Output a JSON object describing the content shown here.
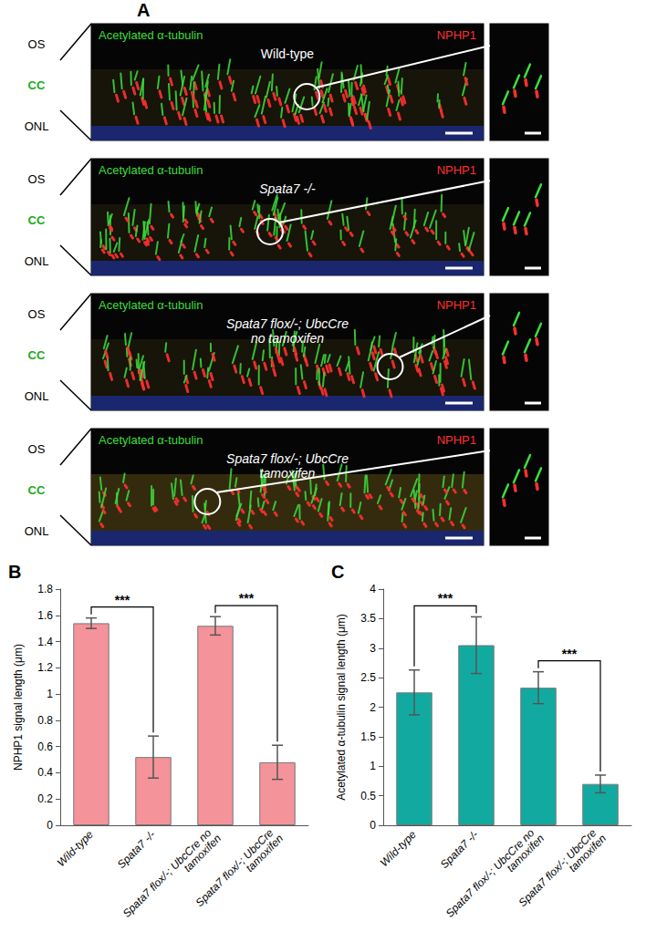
{
  "panel_a": {
    "label": "A",
    "layers": [
      "OS",
      "CC",
      "ONL"
    ],
    "stains": [
      {
        "text": "Acetylated α-tubulin",
        "color": "#3ddc3d"
      },
      {
        "text": "NPHP1",
        "color": "#ff3030"
      }
    ],
    "rows": [
      [
        "Wild-type"
      ],
      [
        "Spata7 -/-"
      ],
      [
        "Spata7 flox/-; UbcCre",
        "no tamoxifen"
      ],
      [
        "Spata7 flox/-; UbcCre",
        "tamoxifen"
      ]
    ]
  },
  "chart_data": [
    {
      "type": "bar",
      "title": "B",
      "y_label": "NPHP1 signal length (μm)",
      "categories": [
        "Wild-type",
        "Spata7 -/-",
        "Spata7 flox/-; UbcCre no tamoxifen",
        "Spata7 flox/-; UbcCre tamoxifen"
      ],
      "values": [
        1.54,
        0.52,
        1.52,
        0.48
      ],
      "errors": [
        0.04,
        0.16,
        0.07,
        0.13
      ],
      "color": "#f4939a",
      "ylim": [
        0,
        1.8
      ],
      "yticks": [
        0,
        0.2,
        0.4,
        0.6,
        0.8,
        1,
        1.2,
        1.4,
        1.6,
        1.8
      ],
      "grid": false,
      "annotations": [
        {
          "text": "***",
          "from": "Wild-type",
          "to": "Spata7 -/-"
        },
        {
          "text": "***",
          "from": "Spata7 flox/-; UbcCre no tamoxifen",
          "to": "Spata7 flox/-; UbcCre tamoxifen"
        }
      ]
    },
    {
      "type": "bar",
      "title": "C",
      "y_label": "Acetylated α-tubulin signal length (μm)",
      "categories": [
        "Wild-type",
        "Spata7 -/-",
        "Spata7 flox/-; UbcCre no tamoxifen",
        "Spata7 flox/-; UbcCre tamoxifen"
      ],
      "values": [
        2.25,
        3.05,
        2.33,
        0.7
      ],
      "errors": [
        0.38,
        0.48,
        0.27,
        0.15
      ],
      "color": "#12aaa0",
      "ylim": [
        0,
        4
      ],
      "yticks": [
        0,
        0.5,
        1,
        1.5,
        2,
        2.5,
        3,
        3.5,
        4
      ],
      "grid": false,
      "annotations": [
        {
          "text": "***",
          "from": "Wild-type",
          "to": "Spata7 -/-"
        },
        {
          "text": "***",
          "from": "Spata7 flox/-; UbcCre no tamoxifen",
          "to": "Spata7 flox/-; UbcCre tamoxifen"
        }
      ]
    }
  ]
}
